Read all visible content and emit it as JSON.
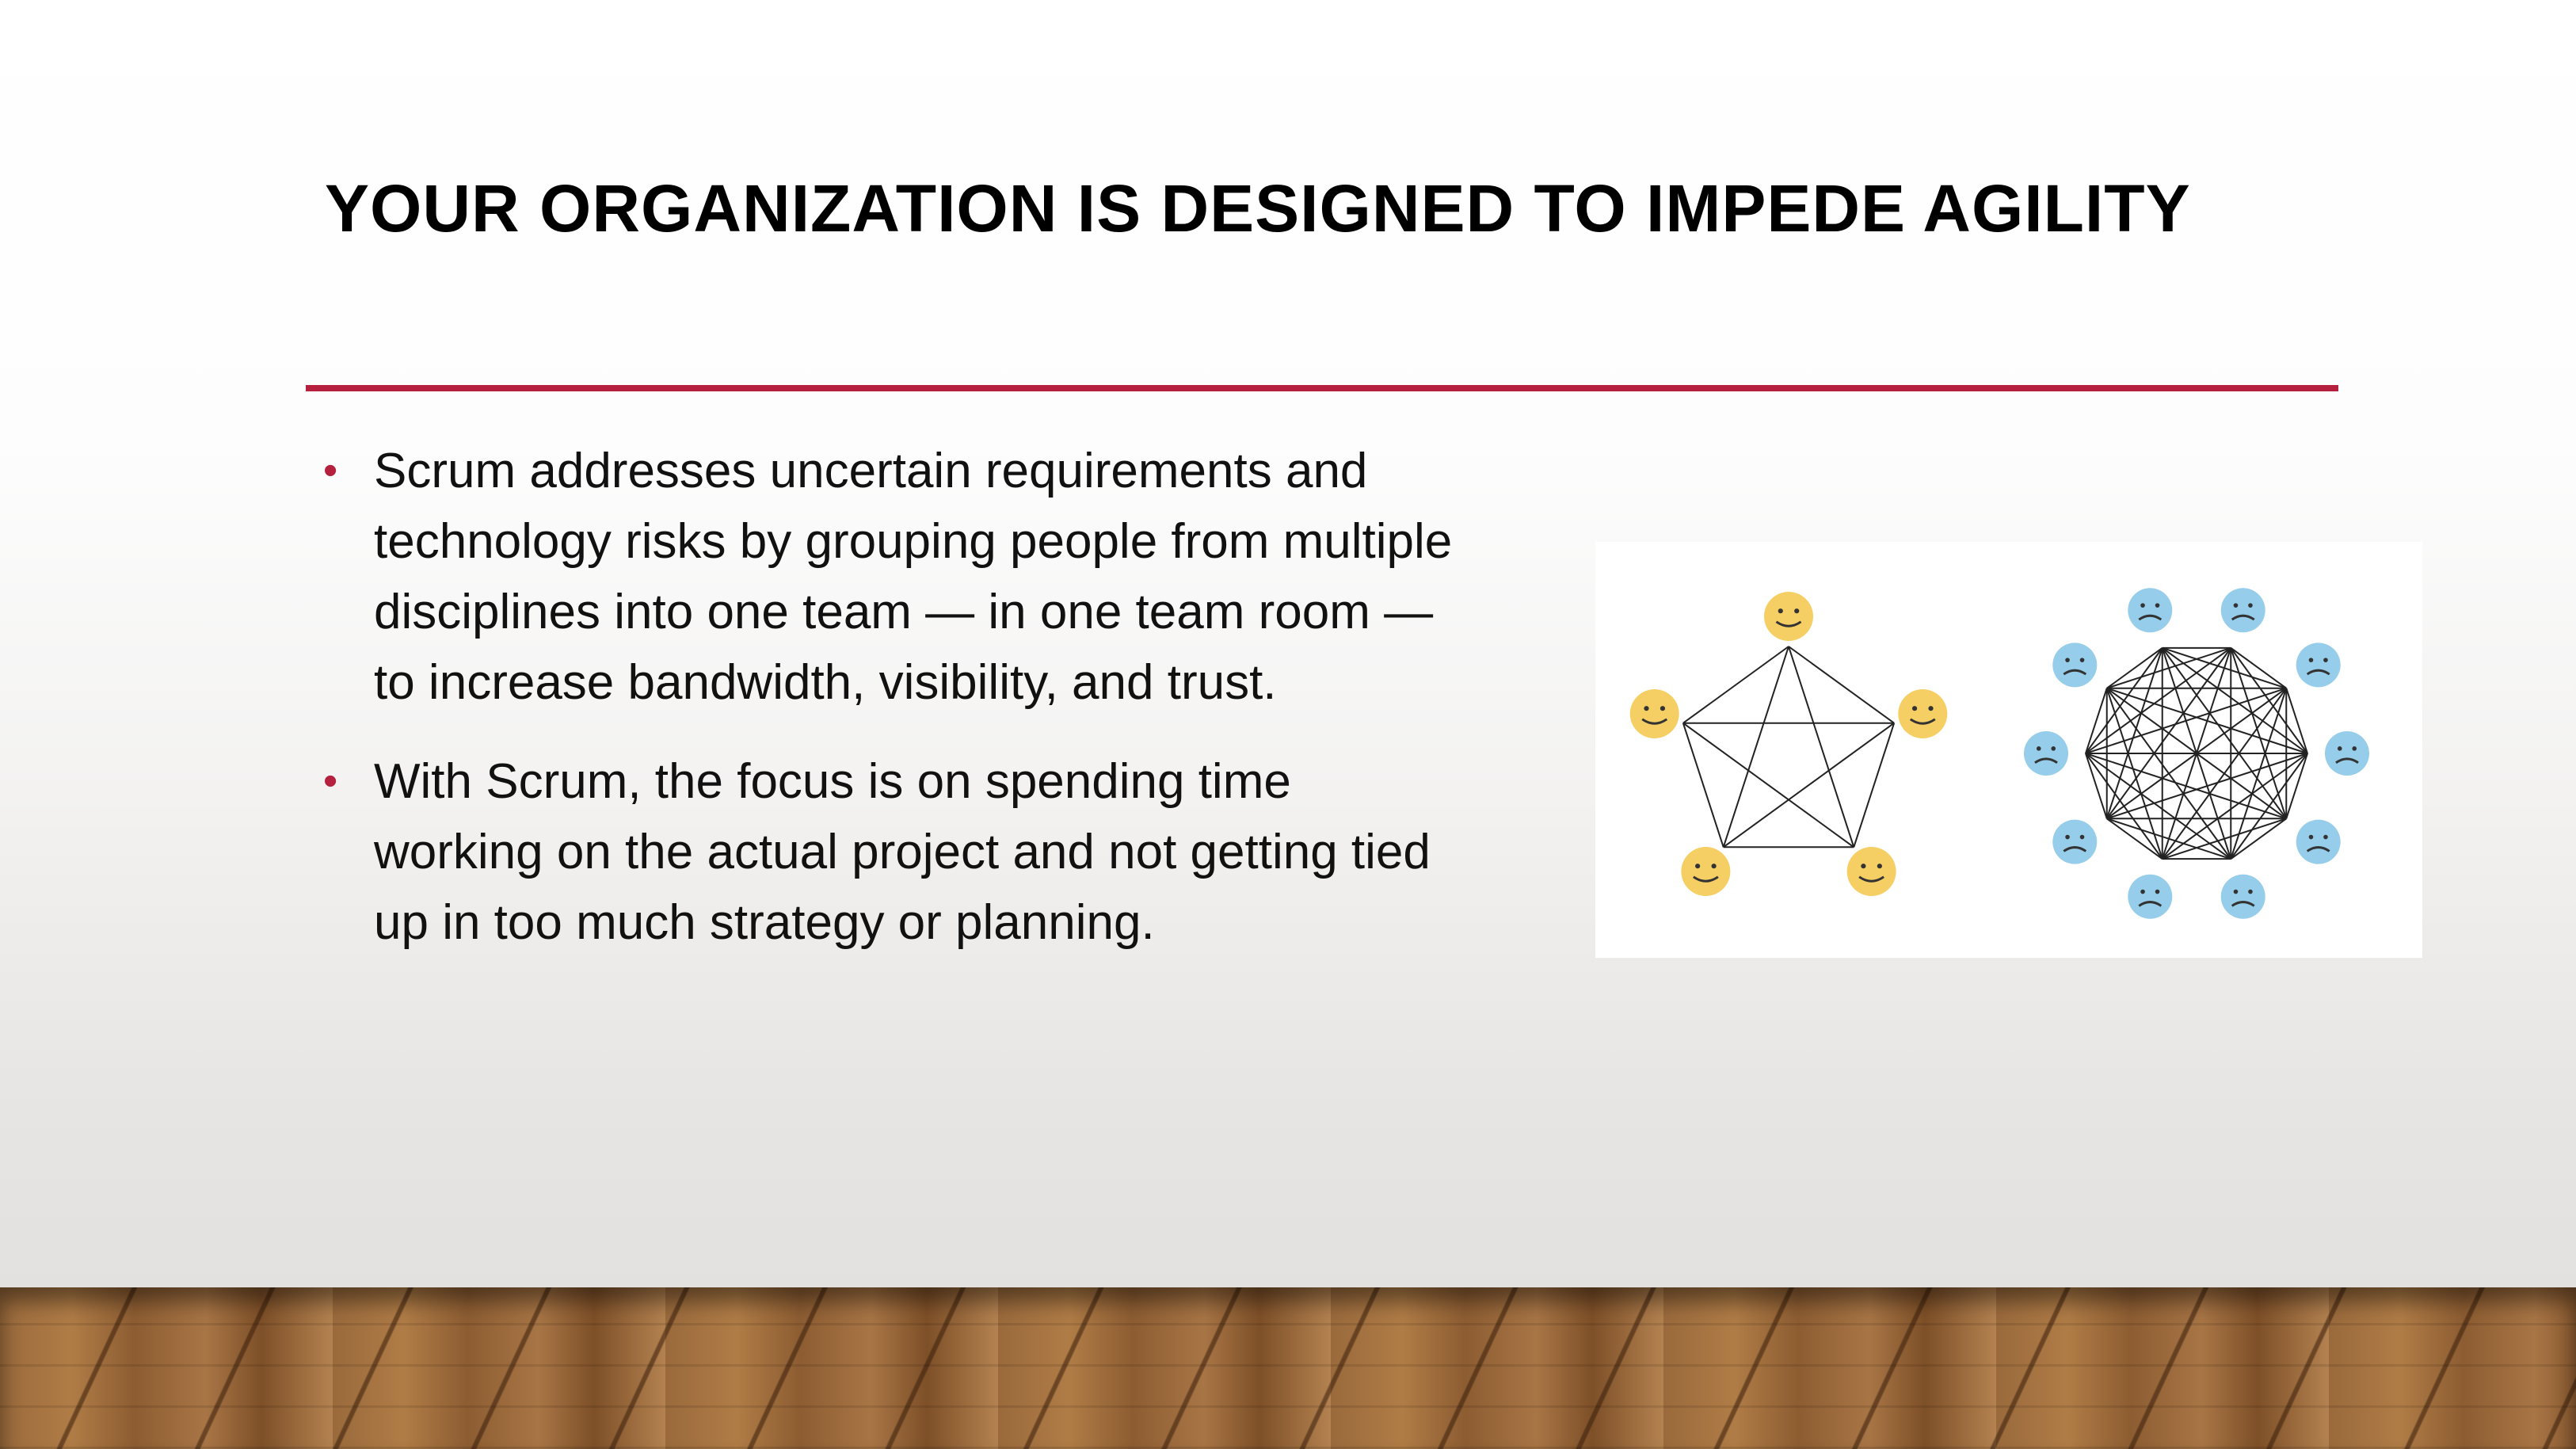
{
  "slide": {
    "title": "YOUR ORGANIZATION IS DESIGNED TO IMPEDE AGILITY",
    "accent_color": "#b5203f",
    "bullet_symbol": "•",
    "bullets": [
      {
        "lines": [
          "Scrum addresses uncertain requirements and",
          "technology risks by grouping people from multiple",
          "disciplines into one team — in one team room —",
          "to increase bandwidth, visibility, and trust."
        ]
      },
      {
        "lines": [
          "With Scrum, the focus is on spending time",
          "working on the actual project and not getting tied",
          "up in too much strategy or planning."
        ]
      }
    ],
    "figure": {
      "small_team": {
        "members": 5,
        "face": "happy-face-icon",
        "face_color": "#f5cf63"
      },
      "large_team": {
        "members": 10,
        "face": "sad-face-icon",
        "face_color": "#95cdea"
      }
    }
  }
}
